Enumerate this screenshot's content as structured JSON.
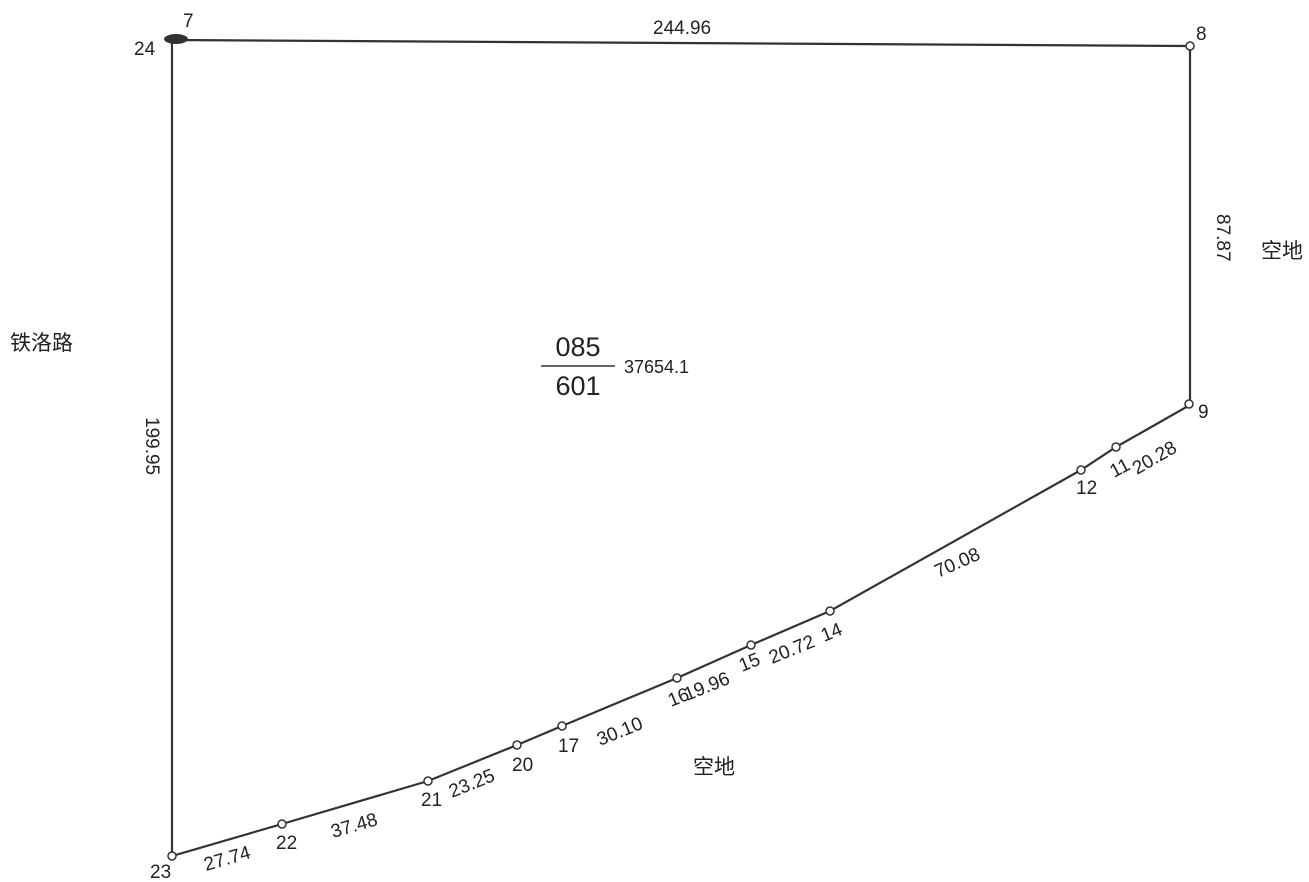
{
  "parcel": {
    "number_top": "085",
    "number_bottom": "601",
    "area": "37654.1"
  },
  "vertices": [
    {
      "id": "7",
      "label": "7"
    },
    {
      "id": "24",
      "label": "24"
    },
    {
      "id": "8",
      "label": "8"
    },
    {
      "id": "9",
      "label": "9"
    },
    {
      "id": "11",
      "label": "11"
    },
    {
      "id": "12",
      "label": "12"
    },
    {
      "id": "14",
      "label": "14"
    },
    {
      "id": "15",
      "label": "15"
    },
    {
      "id": "16",
      "label": "16"
    },
    {
      "id": "17",
      "label": "17"
    },
    {
      "id": "20",
      "label": "20"
    },
    {
      "id": "21",
      "label": "21"
    },
    {
      "id": "22",
      "label": "22"
    },
    {
      "id": "23",
      "label": "23"
    }
  ],
  "edges": [
    {
      "id": "7-8",
      "length": "244.96"
    },
    {
      "id": "8-9",
      "length": "87.87"
    },
    {
      "id": "9-11",
      "length": "20.28"
    },
    {
      "id": "12-14",
      "length": "70.08"
    },
    {
      "id": "14-15",
      "length": "20.72"
    },
    {
      "id": "15-16",
      "length": "19.96"
    },
    {
      "id": "16-17",
      "length": "30.10"
    },
    {
      "id": "20-21",
      "length": "23.25"
    },
    {
      "id": "21-22",
      "length": "37.48"
    },
    {
      "id": "22-23",
      "length": "27.74"
    },
    {
      "id": "23-24",
      "length": "199.95"
    }
  ],
  "neighbors": {
    "west": "铁洛路",
    "east": "空地",
    "south": "空地"
  }
}
